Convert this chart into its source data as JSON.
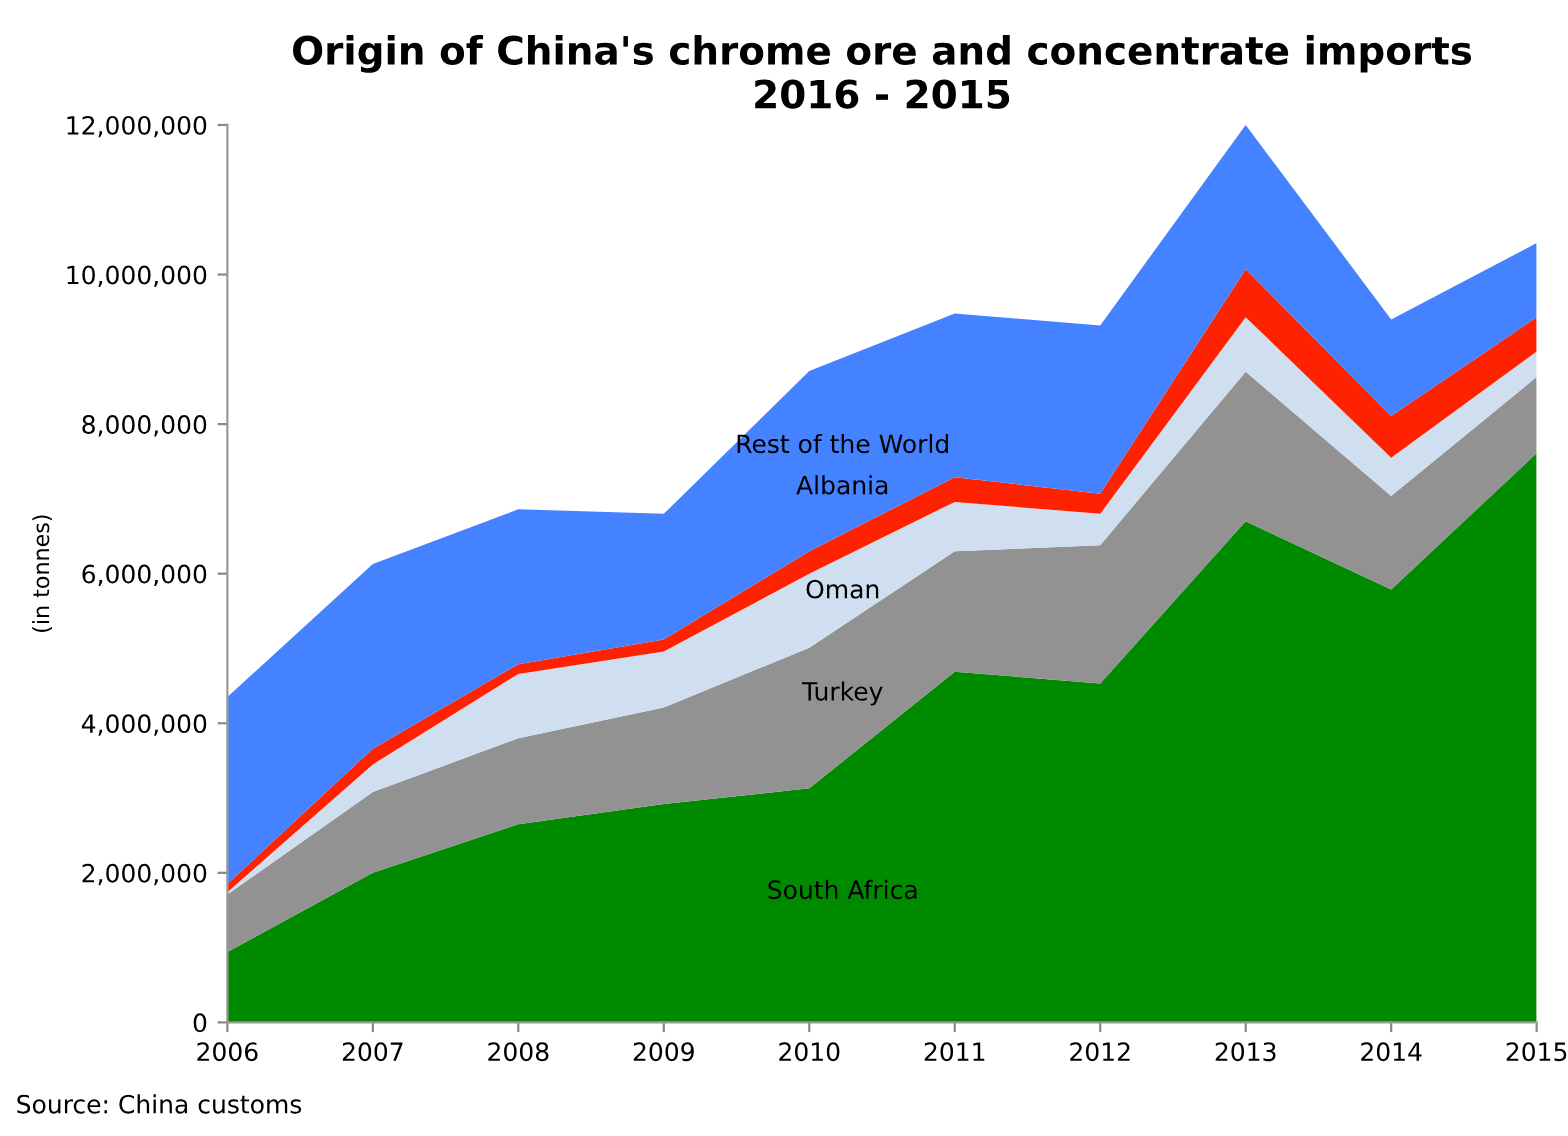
{
  "chart_data": {
    "type": "area",
    "stacked": true,
    "title": "Origin of China's chrome ore and concentrate imports\n2016 - 2015",
    "ylabel": "(in tonnes)",
    "x": [
      2006,
      2007,
      2008,
      2009,
      2010,
      2011,
      2012,
      2013,
      2014,
      2015
    ],
    "series": [
      {
        "name": "South Africa",
        "color": "#008a00",
        "values": [
          940000,
          2000000,
          2650000,
          2920000,
          3130000,
          4690000,
          4530000,
          6700000,
          5790000,
          7610000
        ]
      },
      {
        "name": "Turkey",
        "color": "#929292",
        "values": [
          770000,
          1080000,
          1150000,
          1290000,
          1880000,
          1610000,
          1850000,
          2000000,
          1250000,
          1020000
        ]
      },
      {
        "name": "Oman",
        "color": "#cfdff0",
        "values": [
          30000,
          370000,
          860000,
          750000,
          990000,
          660000,
          420000,
          730000,
          510000,
          340000
        ]
      },
      {
        "name": "Albania",
        "color": "#ff2200",
        "values": [
          110000,
          210000,
          130000,
          160000,
          300000,
          330000,
          270000,
          640000,
          560000,
          460000
        ]
      },
      {
        "name": "Rest of the World",
        "color": "#4482ff",
        "values": [
          2500000,
          2470000,
          2070000,
          1680000,
          2410000,
          2190000,
          2250000,
          1930000,
          1290000,
          990000
        ]
      }
    ],
    "xlim": [
      2006,
      2015
    ],
    "xticks": [
      2006,
      2007,
      2008,
      2009,
      2010,
      2011,
      2012,
      2013,
      2014,
      2015
    ],
    "ylim": [
      0,
      12000000
    ],
    "yticks": [
      0,
      {
        "value": 2000000,
        "label": "2,000,000"
      },
      {
        "value": 4000000,
        "label": "4,000,000"
      },
      {
        "value": 6000000,
        "label": "6,000,000"
      },
      {
        "value": 8000000,
        "label": "8,000,000"
      },
      {
        "value": 10000000,
        "label": "10,000,000"
      },
      {
        "value": 12000000,
        "label": "12,000,000"
      }
    ],
    "grid": false,
    "legend": false,
    "annotations": [
      "Source: China customs"
    ]
  }
}
